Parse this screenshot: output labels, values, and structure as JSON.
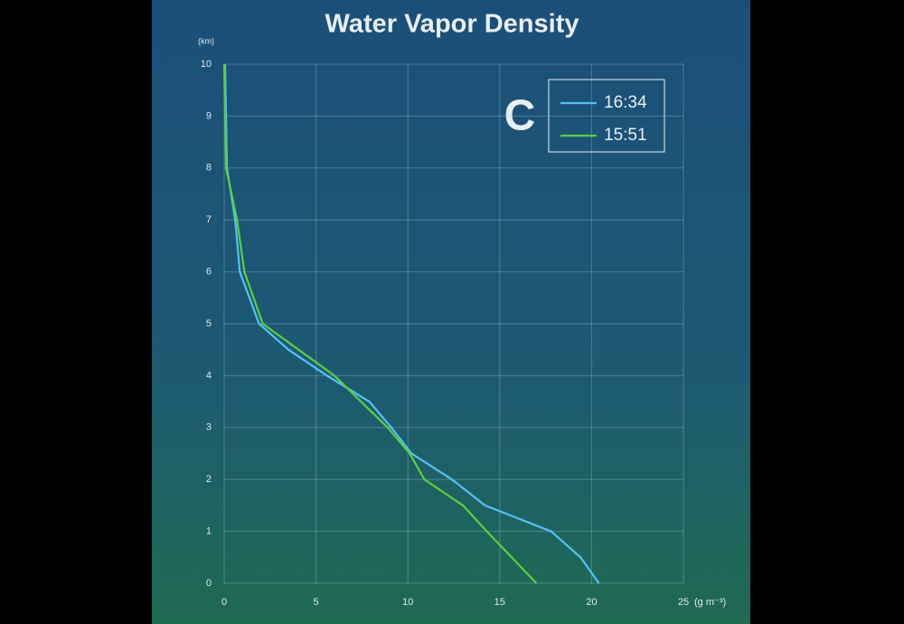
{
  "chart_data": {
    "type": "line",
    "title": "Water Vapor Density",
    "xlabel": "(g m⁻³)",
    "ylabel": "(km)",
    "annotation": "C",
    "xlim": [
      0,
      25
    ],
    "xticks": [
      0,
      5,
      10,
      15,
      20,
      25
    ],
    "ylim": [
      0,
      10
    ],
    "yticks": [
      0,
      1,
      2,
      3,
      4,
      5,
      6,
      7,
      8,
      9,
      10
    ],
    "grid": true,
    "legend": "upper right",
    "series": [
      {
        "name": "16:34",
        "color": "#4fc3f7",
        "x": [
          20.4,
          19.4,
          17.8,
          14.2,
          12.4,
          10.2,
          9.1,
          7.9,
          5.6,
          3.5,
          1.9,
          0.85,
          0.6,
          0.15,
          0.05
        ],
        "y": [
          0,
          0.5,
          1,
          1.5,
          2,
          2.5,
          3,
          3.5,
          4,
          4.5,
          5,
          6,
          7,
          8,
          10
        ]
      },
      {
        "name": "15:51",
        "color": "#5ccf3a",
        "x": [
          17.0,
          14.3,
          13.0,
          10.9,
          10.1,
          8.9,
          6.0,
          2.1,
          1.1,
          0.7,
          0.1,
          0.0
        ],
        "y": [
          0,
          1,
          1.5,
          2,
          2.5,
          3,
          4,
          5,
          6,
          7,
          8,
          10
        ]
      }
    ]
  }
}
